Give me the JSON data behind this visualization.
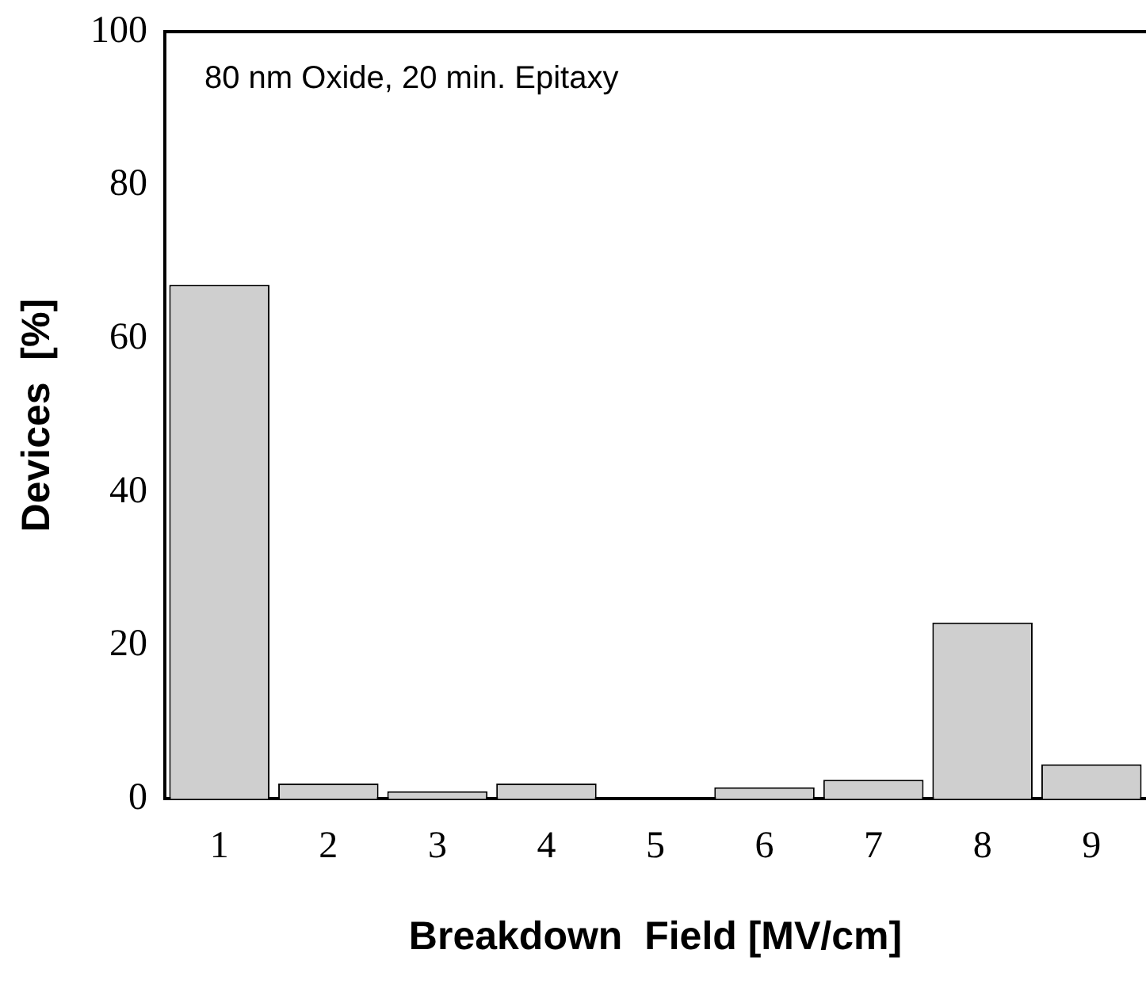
{
  "chart_data": {
    "type": "bar",
    "xlabel": "Breakdown  Field [MV/cm]",
    "ylabel": "Devices  [%]",
    "categories": [
      "1",
      "2",
      "3",
      "4",
      "5",
      "6",
      "7",
      "8",
      "9"
    ],
    "values": [
      67,
      2,
      1,
      2,
      0,
      1.5,
      2.5,
      23,
      4.5
    ],
    "color": "#cfcfcf",
    "ylim": [
      0,
      100
    ],
    "yticks": [
      0,
      20,
      40,
      60,
      80,
      100
    ],
    "grid": false,
    "legend": false,
    "annotations": [
      "80 nm Oxide, 20 min. Epitaxy"
    ]
  }
}
